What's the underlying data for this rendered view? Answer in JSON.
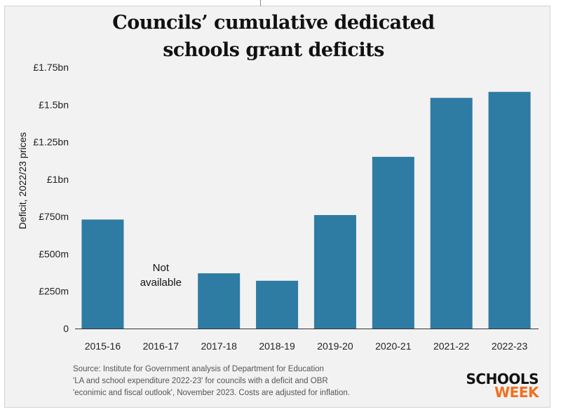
{
  "title_line1": "Councils’ cumulative dedicated",
  "title_line2": "schools grant deficits",
  "source_lines": [
    "Source: Institute for Government analysis of Department for Education",
    "'LA and school expenditure 2022-23' for councils with a deficit and OBR",
    "'econimic and fiscal outlook', November 2023. Costs are adjusted for inflation."
  ],
  "brand": {
    "line1": "SCHOOLS",
    "line2": "WEEK",
    "color1": "#111111",
    "color2": "#f07020"
  },
  "chart_data": {
    "type": "bar",
    "ylabel": "Deficit, 2022/23 prices",
    "categories": [
      "2015-16",
      "2016-17",
      "2017-18",
      "2018-19",
      "2019-20",
      "2020-21",
      "2021-22",
      "2022-23"
    ],
    "values": [
      730,
      null,
      370,
      320,
      760,
      1150,
      1545,
      1585
    ],
    "units": "£m",
    "ylim": [
      0,
      1750
    ],
    "yticks": [
      0,
      250,
      500,
      750,
      1000,
      1250,
      1500,
      1750
    ],
    "ytick_labels": [
      "0",
      "£250m",
      "£500m",
      "£750m",
      "£1bn",
      "£1.25bn",
      "£1.5bn",
      "£1.75bn"
    ],
    "annotation": {
      "category": "2016-17",
      "lines": [
        "Not",
        "available"
      ]
    },
    "bar_color": "#2e7ba3",
    "grid": false
  }
}
